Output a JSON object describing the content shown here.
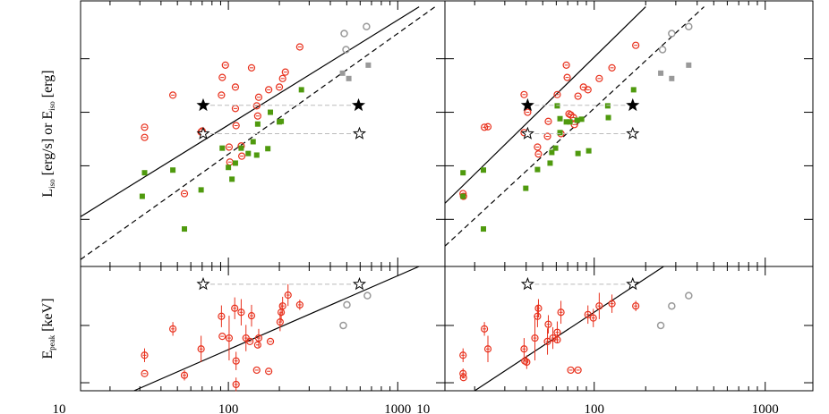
{
  "chart_data": [
    {
      "type": "scatter",
      "xscale": "log",
      "xlim": [
        13.4,
        1900
      ],
      "ylim": [
        0.12,
        5.08
      ],
      "xticks": [
        10,
        100,
        1000
      ],
      "yticks": [
        1,
        2,
        3,
        4
      ],
      "xticklabels": false,
      "ylabel_parts": [
        "L",
        "iso",
        " [erg/s] or E",
        "iso",
        " [erg]"
      ],
      "series": [
        {
          "marker": "circle-plus",
          "color": "#e8301c",
          "x": [
            32,
            32,
            55,
            69,
            91,
            92,
            96,
            110,
            110,
            111,
            101,
            119,
            120,
            102,
            137,
            147,
            149,
            151,
            173,
            200,
            209,
            217,
            264,
            47,
            70
          ],
          "values": [
            2.72,
            2.53,
            1.48,
            2.63,
            3.32,
            3.65,
            3.88,
            3.47,
            3.07,
            2.75,
            2.35,
            2.37,
            2.18,
            2.07,
            3.83,
            3.12,
            2.93,
            3.28,
            3.42,
            3.47,
            3.63,
            3.75,
            4.22,
            3.32,
            2.65
          ]
        },
        {
          "marker": "square",
          "color": "#4f9a0e",
          "x": [
            32,
            31,
            47,
            55,
            69,
            100,
            92,
            110,
            105,
            119,
            131,
            147,
            140,
            149,
            171,
            177,
            200,
            205,
            270
          ],
          "values": [
            1.87,
            1.43,
            1.92,
            0.82,
            1.55,
            1.97,
            2.33,
            2.05,
            1.75,
            2.33,
            2.23,
            2.2,
            2.45,
            2.78,
            2.32,
            3.0,
            2.82,
            2.83,
            3.42
          ]
        },
        {
          "marker": "circle",
          "color": "#999999",
          "x": [
            495,
            483,
            654
          ],
          "values": [
            4.17,
            4.47,
            4.6
          ]
        },
        {
          "marker": "square",
          "color": "#999999",
          "x": [
            472,
            514,
            670
          ],
          "values": [
            3.73,
            3.63,
            3.88
          ]
        },
        {
          "marker": "star",
          "color": "#000000",
          "connect": "dashed",
          "x": [
            71,
            587
          ],
          "values": [
            3.13,
            3.13
          ]
        },
        {
          "marker": "star-open",
          "color": "#000000",
          "connect": "dashed",
          "x": [
            71,
            594
          ],
          "values": [
            2.6,
            2.6
          ]
        }
      ],
      "lines": [
        {
          "style": "solid",
          "x": [
            13.4,
            1337
          ],
          "values": [
            1.05,
            4.97
          ]
        },
        {
          "style": "dashed",
          "x": [
            13.4,
            1663
          ],
          "values": [
            0.25,
            4.97
          ]
        }
      ]
    },
    {
      "type": "scatter",
      "xscale": "log",
      "xlim": [
        13.4,
        1900
      ],
      "ylim": [
        0.12,
        5.08
      ],
      "xticks": [
        10,
        100,
        1000
      ],
      "yticks": [
        1,
        2,
        3,
        4
      ],
      "xticklabels": false,
      "series": [
        {
          "marker": "circle-plus",
          "color": "#e8301c",
          "x": [
            17.1,
            17.2,
            22.8,
            23.9,
            38.9,
            40.8,
            46.6,
            47.2,
            53.9,
            53.3,
            60.8,
            63.9,
            68.7,
            69.5,
            71.2,
            72.9,
            75.7,
            76.6,
            80.4,
            86.5,
            91.9,
            107,
            127,
            175,
            38.9
          ],
          "values": [
            1.48,
            1.43,
            2.72,
            2.73,
            3.33,
            3.0,
            2.35,
            2.22,
            2.83,
            2.55,
            3.33,
            2.6,
            3.88,
            3.65,
            2.97,
            2.95,
            2.9,
            2.77,
            3.3,
            3.47,
            3.42,
            3.63,
            3.83,
            4.25,
            2.62
          ]
        },
        {
          "marker": "square",
          "color": "#4f9a0e",
          "x": [
            17.1,
            17.1,
            22.5,
            22.5,
            39.8,
            46.6,
            55.2,
            56.5,
            59.4,
            60.8,
            63.1,
            63.1,
            68.7,
            72.1,
            80.4,
            79.4,
            84.4,
            92.9,
            120,
            121,
            170
          ],
          "values": [
            1.87,
            1.43,
            0.82,
            1.92,
            1.58,
            1.93,
            2.05,
            2.25,
            2.33,
            3.12,
            2.88,
            2.62,
            2.82,
            2.82,
            2.23,
            2.85,
            2.87,
            2.28,
            3.12,
            2.9,
            3.42
          ]
        },
        {
          "marker": "circle",
          "color": "#999999",
          "x": [
            251,
            284,
            357
          ],
          "values": [
            4.17,
            4.47,
            4.6
          ]
        },
        {
          "marker": "square",
          "color": "#999999",
          "x": [
            245,
            284,
            357
          ],
          "values": [
            3.73,
            3.63,
            3.88
          ]
        },
        {
          "marker": "star",
          "color": "#000000",
          "connect": "dashed",
          "x": [
            40.8,
            168
          ],
          "values": [
            3.13,
            3.13
          ]
        },
        {
          "marker": "star-open",
          "color": "#000000",
          "connect": "dashed",
          "x": [
            40.8,
            168
          ],
          "values": [
            2.6,
            2.6
          ]
        }
      ],
      "lines": [
        {
          "style": "solid",
          "x": [
            13.4,
            200
          ],
          "values": [
            1.3,
            4.97
          ]
        },
        {
          "style": "dashed",
          "x": [
            13.4,
            439
          ],
          "values": [
            0.5,
            4.97
          ]
        }
      ]
    },
    {
      "type": "scatter",
      "xscale": "log",
      "xlim": [
        13.4,
        1900
      ],
      "ylim": [
        0.86,
        3.03
      ],
      "xticks": [
        10,
        100,
        1000
      ],
      "yticks": [
        1,
        2
      ],
      "xticklabels": true,
      "ylabel_parts": [
        "E",
        "peak",
        " [keV]"
      ],
      "series": [
        {
          "marker": "circle-plus",
          "color": "#e8301c",
          "x": [
            32,
            32,
            47,
            55,
            69,
            91,
            92,
            101,
            109,
            111,
            111,
            119,
            127,
            134,
            137,
            147,
            149,
            151,
            173,
            177,
            202,
            205,
            209,
            225,
            264
          ],
          "values": [
            1.48,
            1.16,
            1.94,
            1.13,
            1.59,
            2.16,
            1.81,
            1.78,
            2.3,
            1.38,
            0.97,
            2.23,
            1.78,
            1.72,
            2.17,
            1.22,
            1.66,
            1.78,
            1.2,
            1.72,
            2.06,
            2.23,
            2.34,
            2.53,
            2.36
          ],
          "errors": [
            0.12,
            0,
            0.12,
            0.09,
            0.23,
            0.19,
            0,
            0.39,
            0.19,
            0.16,
            0.12,
            0.23,
            0.23,
            0,
            0.19,
            0,
            0,
            0.16,
            0,
            0,
            0.16,
            0.16,
            0.16,
            0.19,
            0.09
          ]
        },
        {
          "marker": "circle",
          "color": "#999999",
          "x": [
            477,
            501,
            662
          ],
          "values": [
            2.0,
            2.36,
            2.52
          ]
        },
        {
          "marker": "star-open",
          "color": "#000000",
          "connect": "dashed",
          "x": [
            71,
            594
          ],
          "values": [
            2.72,
            2.72
          ]
        }
      ],
      "lines": [
        {
          "style": "solid",
          "x": [
            27.7,
            1337
          ],
          "values": [
            0.86,
            3.03
          ]
        }
      ]
    },
    {
      "type": "scatter",
      "xscale": "log",
      "xlim": [
        13.4,
        1900
      ],
      "ylim": [
        0.86,
        3.03
      ],
      "xticks": [
        10,
        100,
        1000
      ],
      "yticks": [
        1,
        2
      ],
      "xticklabels": true,
      "series": [
        {
          "marker": "circle-plus",
          "color": "#e8301c",
          "x": [
            17.1,
            17.2,
            17.1,
            22.8,
            23.9,
            38.9,
            39.3,
            40.3,
            45,
            46.6,
            47.2,
            53.3,
            53.9,
            57.3,
            60.8,
            63.9,
            60.8,
            72.9,
            80.4,
            91.9,
            98.8,
            107,
            127,
            175
          ],
          "values": [
            1.16,
            1.09,
            1.48,
            1.94,
            1.59,
            1.59,
            1.38,
            1.36,
            1.78,
            2.16,
            2.3,
            1.72,
            2.02,
            1.78,
            1.88,
            2.23,
            1.75,
            1.22,
            1.22,
            2.19,
            2.13,
            2.34,
            2.38,
            2.34
          ],
          "errors": [
            0.09,
            0,
            0.12,
            0.12,
            0.23,
            0.19,
            0,
            0.12,
            0.39,
            0.19,
            0.16,
            0.23,
            0.16,
            0.19,
            0.19,
            0.2,
            0,
            0,
            0,
            0.16,
            0.16,
            0.23,
            0.16,
            0.09
          ]
        },
        {
          "marker": "circle",
          "color": "#999999",
          "x": [
            245,
            284,
            357
          ],
          "values": [
            2.0,
            2.34,
            2.52
          ]
        },
        {
          "marker": "star-open",
          "color": "#000000",
          "connect": "dashed",
          "x": [
            40.8,
            168
          ],
          "values": [
            2.72,
            2.72
          ]
        }
      ],
      "lines": [
        {
          "style": "solid",
          "x": [
            20,
            255
          ],
          "values": [
            0.86,
            3.03
          ]
        }
      ]
    }
  ]
}
